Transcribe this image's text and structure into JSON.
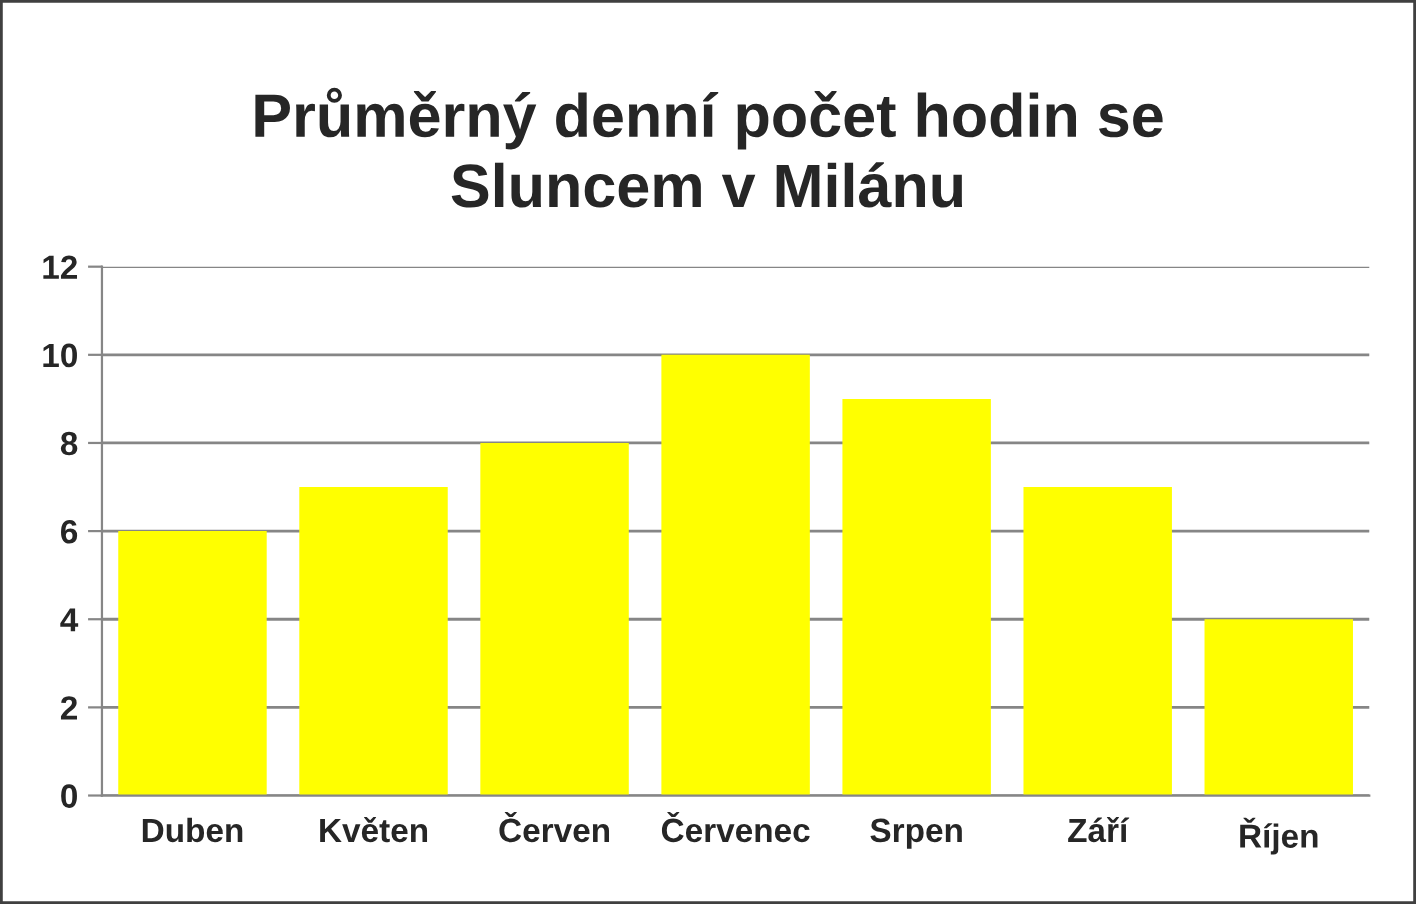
{
  "chart_data": {
    "type": "bar",
    "title": "Průměrný denní počet hodin se\nSluncem v Milánu",
    "categories": [
      "Duben",
      "Květen",
      "Červen",
      "Červenec",
      "Srpen",
      "Září",
      "Říjen"
    ],
    "values": [
      6,
      7,
      8,
      10,
      9,
      7,
      4
    ],
    "color": "#ffff00",
    "ylim": [
      0,
      12
    ],
    "yticks": [
      0,
      2,
      4,
      6,
      8,
      10,
      12
    ],
    "grid": "y",
    "legend": false
  }
}
